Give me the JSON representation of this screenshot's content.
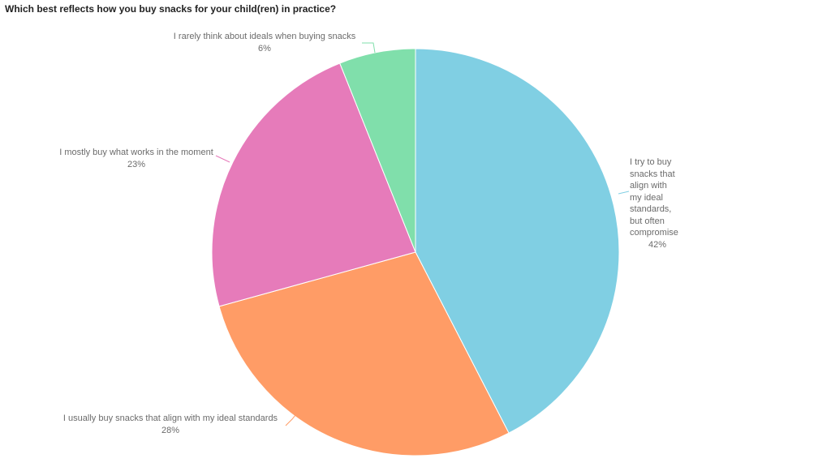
{
  "title": "Which best reflects how you buy snacks for your child(ren) in practice?",
  "chart_data": {
    "type": "pie",
    "title": "Which best reflects how you buy snacks for your child(ren) in practice?",
    "categories": [
      "I try to buy snacks that align with my ideal standards, but often compromise",
      "I usually buy snacks that align with my ideal standards",
      "I mostly buy what works in the moment",
      "I rarely think about ideals when buying snacks"
    ],
    "values": [
      42,
      28,
      23,
      6
    ],
    "value_labels": [
      "42%",
      "28%",
      "23%",
      "6%"
    ],
    "colors": [
      "#80cfe3",
      "#ff9c66",
      "#e67bba",
      "#80dfab"
    ],
    "start_angle": "12 o'clock, clockwise",
    "legend": "none (slice labels with leader lines)"
  },
  "slices": [
    {
      "label": "I try to buy snacks that align with my ideal standards, but often compromise",
      "label_lines": [
        "I try to buy",
        "snacks that",
        "align with",
        "my ideal",
        "standards,",
        "but often",
        "compromise"
      ],
      "pct": "42%"
    },
    {
      "label": "I usually buy snacks that align with my ideal standards",
      "pct": "28%"
    },
    {
      "label": "I mostly buy what works in the moment",
      "pct": "23%"
    },
    {
      "label": "I rarely think about ideals when buying snacks",
      "pct": "6%"
    }
  ]
}
